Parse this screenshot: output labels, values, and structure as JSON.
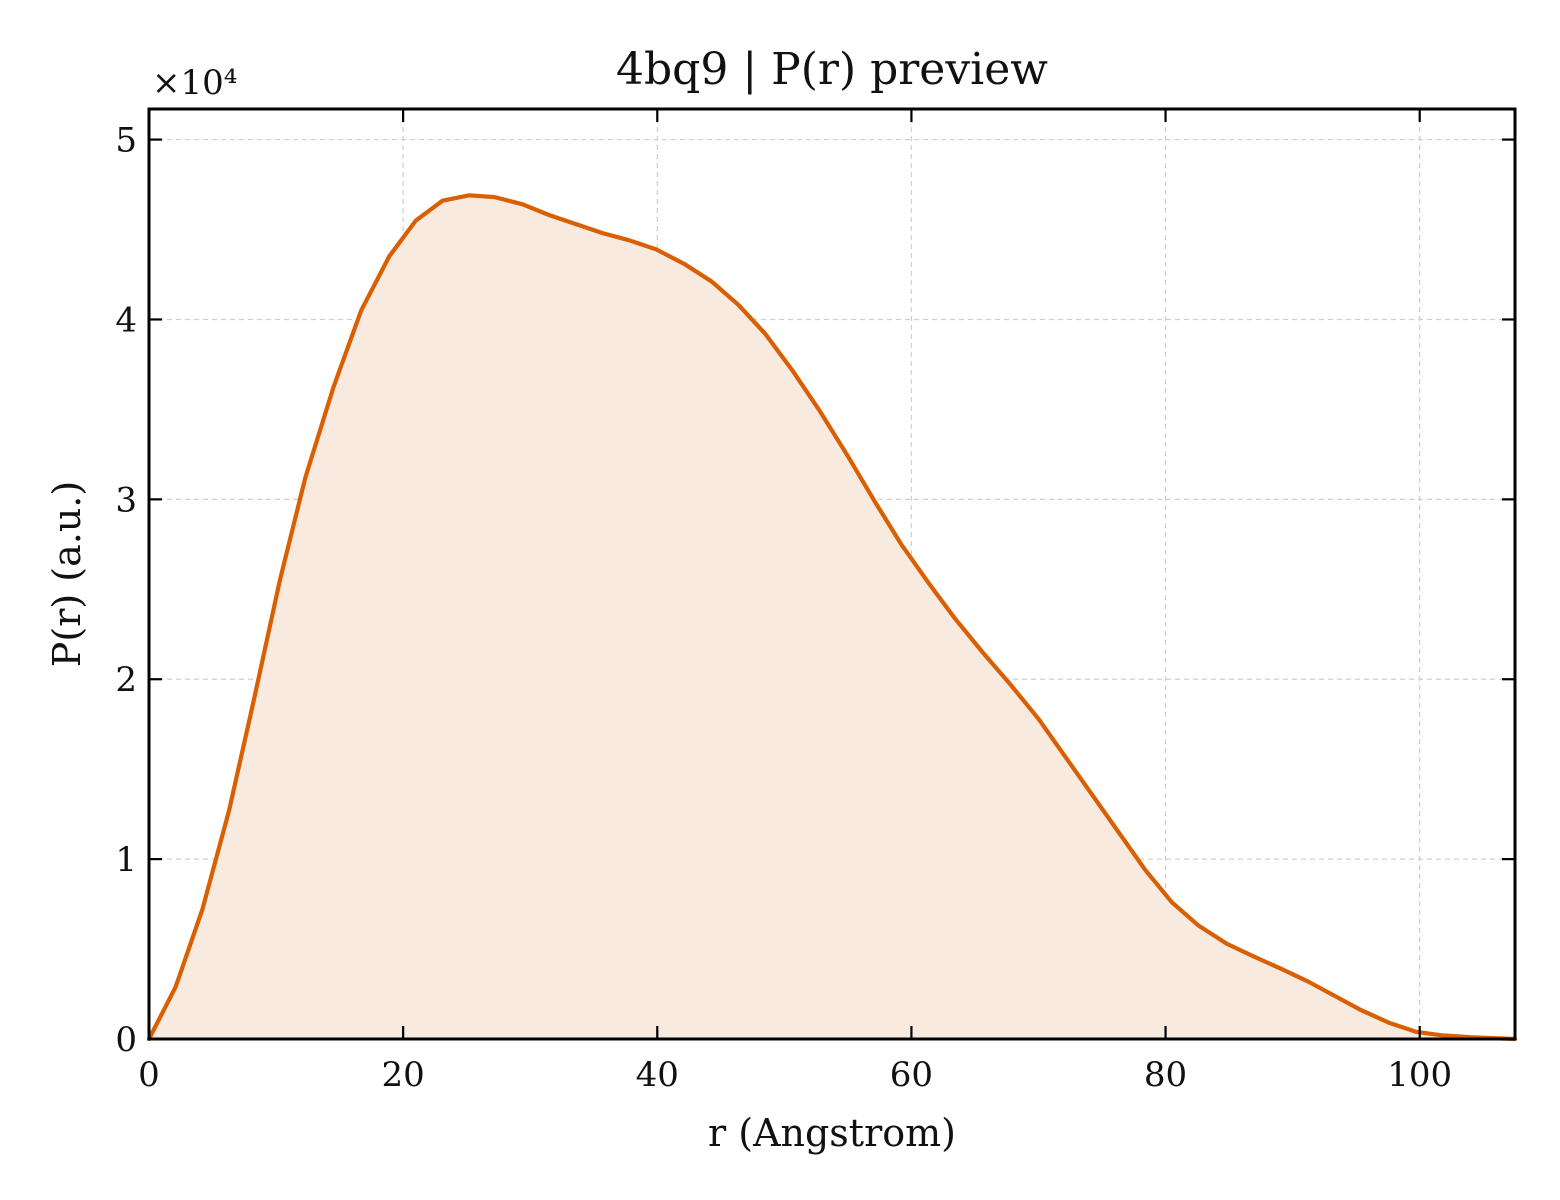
{
  "chart_data": {
    "type": "area",
    "title": "4bq9 | P(r) preview",
    "xlabel": "r (Angstrom)",
    "ylabel": "P(r) (a.u.)",
    "y_multiplier_label": "×10⁴",
    "xlim": [
      0,
      107.5
    ],
    "ylim": [
      0,
      5.17
    ],
    "x_ticks": [
      0,
      20,
      40,
      60,
      80,
      100
    ],
    "x_tick_labels": [
      "0",
      "20",
      "40",
      "60",
      "80",
      "100"
    ],
    "y_ticks": [
      0,
      1,
      2,
      3,
      4,
      5
    ],
    "y_tick_labels": [
      "0",
      "1",
      "2",
      "3",
      "4",
      "5"
    ],
    "grid": true,
    "tick_direction": "in",
    "line_color": "#d95f02",
    "fill_color": "#f9eae0",
    "series": [
      {
        "x": [
          0,
          2.1,
          4.2,
          6.3,
          8.3,
          10.3,
          12.3,
          14.5,
          16.7,
          18.9,
          21.0,
          23.1,
          25.2,
          27.2,
          29.4,
          31.5,
          33.6,
          35.7,
          37.8,
          39.9,
          42.1,
          44.3,
          46.4,
          48.5,
          50.6,
          52.8,
          55.0,
          57.1,
          59.2,
          61.3,
          63.4,
          65.6,
          67.8,
          70.0,
          72.0,
          74.1,
          76.3,
          78.4,
          80.5,
          82.6,
          84.8,
          86.9,
          89.1,
          91.2,
          93.3,
          95.4,
          97.6,
          99.7,
          101.8,
          104.0,
          107.5
        ],
        "y": [
          0,
          0.29,
          0.72,
          1.27,
          1.9,
          2.55,
          3.12,
          3.62,
          4.05,
          4.35,
          4.55,
          4.66,
          4.69,
          4.68,
          4.64,
          4.58,
          4.53,
          4.48,
          4.44,
          4.39,
          4.31,
          4.21,
          4.08,
          3.92,
          3.72,
          3.49,
          3.24,
          2.99,
          2.75,
          2.54,
          2.34,
          2.15,
          1.97,
          1.78,
          1.58,
          1.37,
          1.15,
          0.94,
          0.76,
          0.63,
          0.53,
          0.46,
          0.39,
          0.32,
          0.24,
          0.16,
          0.09,
          0.04,
          0.02,
          0.01,
          0.0
        ]
      }
    ]
  }
}
